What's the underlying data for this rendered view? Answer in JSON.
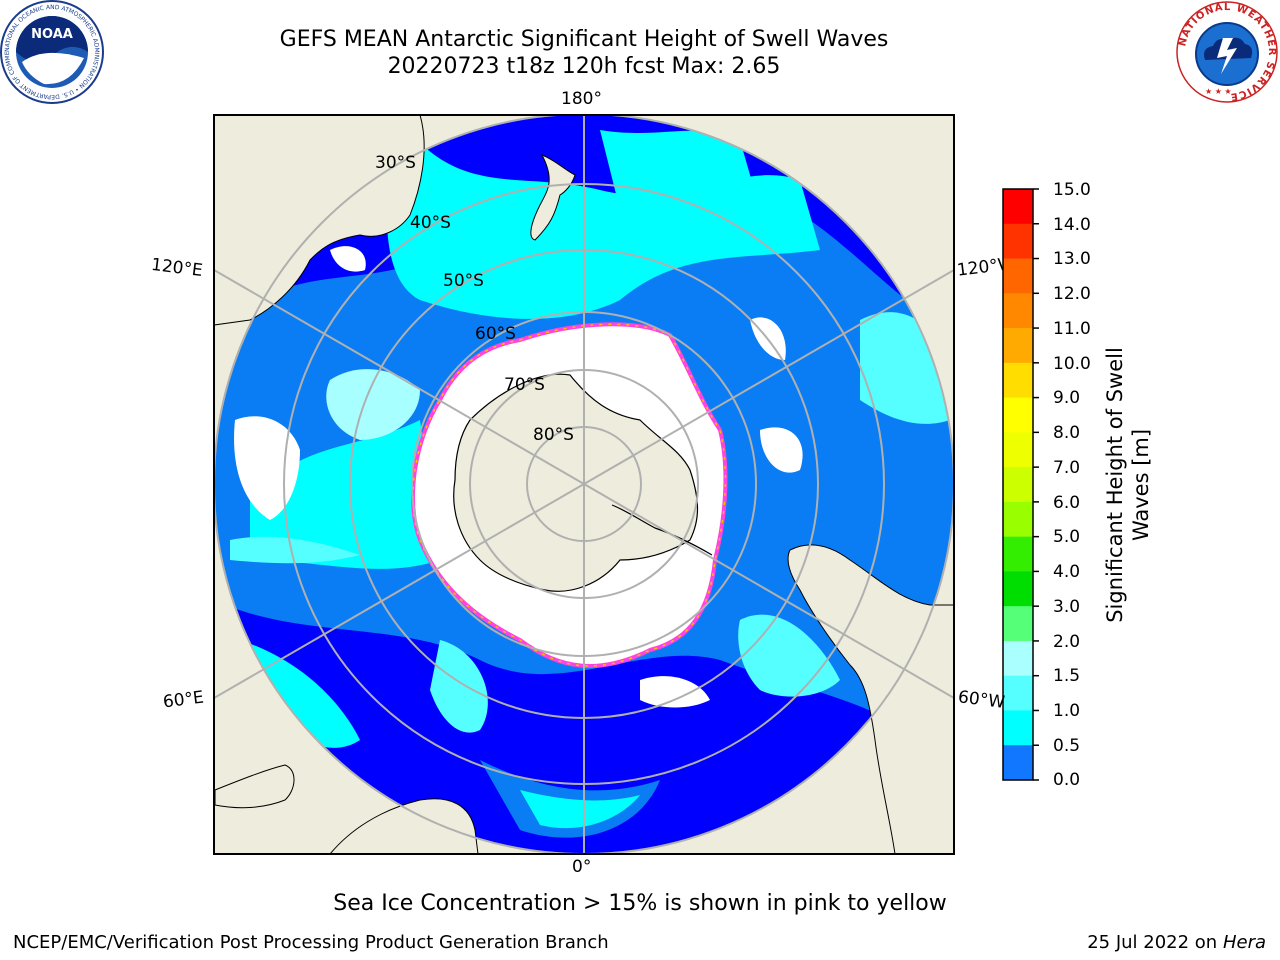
{
  "header": {
    "title_line1": "GEFS MEAN Antarctic Significant Height of Swell Waves",
    "title_line2": "20220723 t18z 120h fcst   Max: 2.65"
  },
  "logos": {
    "noaa": {
      "text": "NOAA",
      "ring_text": "NATIONAL OCEANIC AND ATMOSPHERIC ADMINISTRATION • U.S. DEPARTMENT OF COMMERCE"
    },
    "nws": {
      "ring_text": "NATIONAL WEATHER SERVICE"
    }
  },
  "map": {
    "projection": "south-polar stereographic",
    "latitude_labels": [
      "30°S",
      "40°S",
      "50°S",
      "60°S",
      "70°S",
      "80°S"
    ],
    "longitude_labels": {
      "top": "180°",
      "bottom": "0°",
      "left_upper": "120°E",
      "left_lower": "60°E",
      "right_upper": "120°W",
      "right_lower": "60°W"
    },
    "colors": {
      "ocean_0_05": "#0000ff",
      "ocean_05_1": "#0a7df5",
      "ocean_1_15": "#00ffff",
      "ocean_15_2": "#55ffff",
      "ocean_2_25": "#a8ffff",
      "land": "#eeecdc",
      "sea_ice": "#ffffff",
      "ice_edge": "#ff44dd",
      "ice_edge_yellow": "#ffbb00",
      "gridline": "#b0b0b0"
    }
  },
  "colorbar": {
    "label": "Significant Height of Swell Waves [m]",
    "label_line1": "Significant Height of Swell",
    "label_line2": "Waves [m]",
    "ticks": [
      "15.0",
      "14.0",
      "13.0",
      "12.0",
      "11.0",
      "10.0",
      "9.0",
      "8.0",
      "7.0",
      "6.0",
      "5.0",
      "4.0",
      "3.0",
      "2.0",
      "1.5",
      "1.0",
      "0.5",
      "0.0"
    ],
    "colors": [
      "#ff0000",
      "#ff3300",
      "#ff6600",
      "#ff8800",
      "#ffaa00",
      "#ffdd00",
      "#ffff00",
      "#eeff00",
      "#ccff00",
      "#99ff00",
      "#33ee00",
      "#00dd00",
      "#55ff77",
      "#aaffff",
      "#55ffff",
      "#00ffff",
      "#1177ff",
      "#0000ff"
    ]
  },
  "footer": {
    "caption": "Sea Ice Concentration > 15% is shown in pink to yellow",
    "credit": "NCEP/EMC/Verification Post Processing Product Generation Branch",
    "date": "25 Jul 2022 on",
    "machine": "Hera"
  }
}
